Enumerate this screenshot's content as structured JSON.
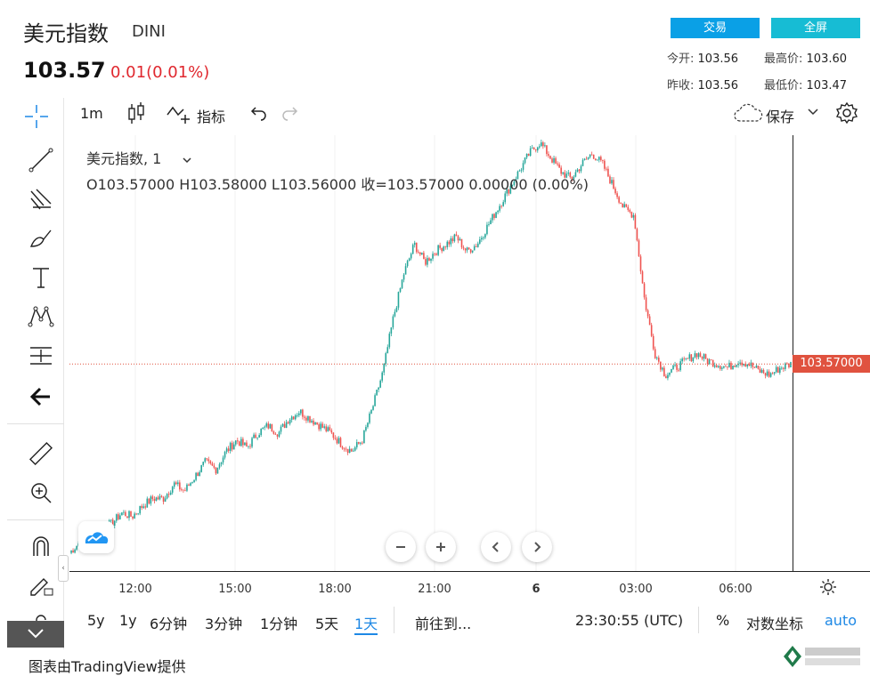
{
  "header": {
    "title": "美元指数",
    "symbol": "DINI",
    "price": "103.57",
    "change": "0.01(0.01%)",
    "trade_label": "交易",
    "fullscreen_label": "全屏"
  },
  "stats": {
    "open_label": "今开:",
    "open": "103.56",
    "high_label": "最高价:",
    "high": "103.60",
    "prev_label": "昨收:",
    "prev": "103.56",
    "low_label": "最低价:",
    "low": "103.47"
  },
  "toolbar": {
    "interval": "1m",
    "indicators_label": "指标",
    "save_label": "保存"
  },
  "legend": {
    "name": "美元指数, 1",
    "ohlc": "O103.57000  H103.58000  L103.56000  收=103.57000  0.00000 (0.00%)"
  },
  "price_tag": "103.57000",
  "colors": {
    "up": "#26a69a",
    "down": "#ef5350",
    "accent": "#0aa0e6",
    "price_line": "#e0523f"
  },
  "time_axis": {
    "ticks": [
      "12:00",
      "15:00",
      "18:00",
      "21:00",
      "6",
      "03:00",
      "06:00"
    ]
  },
  "bottom_bar": {
    "ranges": [
      "5y",
      "1y",
      "6分钟",
      "3分钟",
      "1分钟",
      "5天",
      "1天"
    ],
    "active_range": "1天",
    "goto_label": "前往到...",
    "clock": "23:30:55 (UTC)",
    "percent": "%",
    "log_label": "对数坐标",
    "auto_label": "auto"
  },
  "credit": "图表由TradingView提供",
  "chart_data": {
    "type": "candlestick",
    "y_range": [
      103.0,
      104.2
    ],
    "last_price": 103.57,
    "series": [
      {
        "name": "美元指数",
        "values": [
          103.05,
          103.08,
          103.1,
          103.12,
          103.13,
          103.16,
          103.15,
          103.18,
          103.2,
          103.2,
          103.24,
          103.22,
          103.26,
          103.3,
          103.28,
          103.33,
          103.36,
          103.34,
          103.38,
          103.4,
          103.38,
          103.42,
          103.44,
          103.42,
          103.4,
          103.38,
          103.35,
          103.33,
          103.36,
          103.45,
          103.55,
          103.7,
          103.82,
          103.9,
          103.85,
          103.88,
          103.9,
          103.92,
          103.88,
          103.9,
          103.95,
          104.0,
          104.05,
          104.1,
          104.15,
          104.18,
          104.14,
          104.1,
          104.08,
          104.12,
          104.15,
          104.12,
          104.06,
          104.0,
          103.98,
          103.75,
          103.6,
          103.54,
          103.56,
          103.58,
          103.6,
          103.58,
          103.57,
          103.56,
          103.58,
          103.57,
          103.55,
          103.54,
          103.56,
          103.57
        ]
      }
    ]
  }
}
